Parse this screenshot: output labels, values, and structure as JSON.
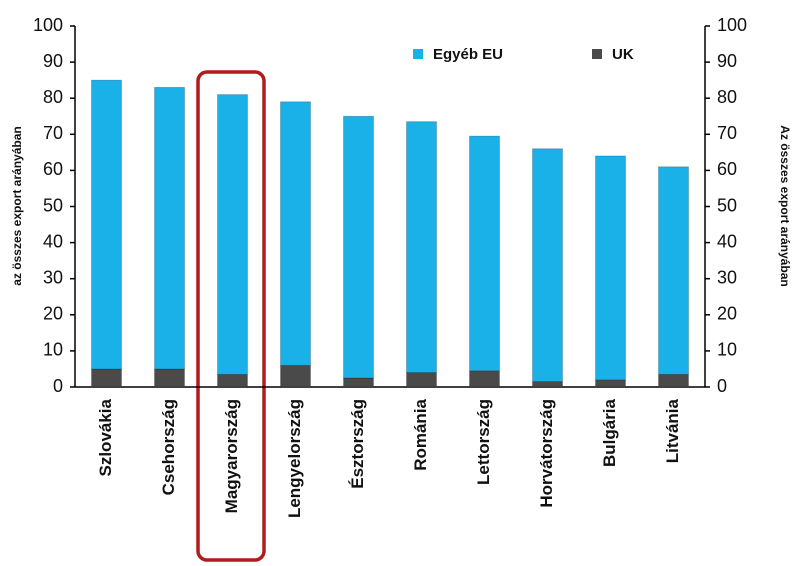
{
  "chart_data": {
    "type": "bar",
    "stacked": true,
    "categories": [
      "Szlovákia",
      "Csehország",
      "Magyarország",
      "Lengyelország",
      "Észtország",
      "Románia",
      "Lettország",
      "Horvátország",
      "Bulgária",
      "Litvánia"
    ],
    "series": [
      {
        "name": "UK",
        "color": "#4a4a4a",
        "values": [
          5,
          5,
          3.5,
          6,
          2.5,
          4,
          4.5,
          1.5,
          2,
          3.5
        ]
      },
      {
        "name": "Egyéb EU",
        "color": "#1ab0e8",
        "values": [
          80,
          78,
          77.5,
          73,
          72.5,
          69.5,
          65,
          64.5,
          62,
          57.5
        ]
      }
    ],
    "ylabel": "az összes export arányában",
    "y2label": "Az összes export arányában",
    "ylim": [
      0,
      100
    ],
    "yticks": [
      0,
      10,
      20,
      30,
      40,
      50,
      60,
      70,
      80,
      90,
      100
    ],
    "y2lim": [
      0,
      100
    ],
    "y2ticks": [
      0,
      10,
      20,
      30,
      40,
      50,
      60,
      70,
      80,
      90,
      100
    ],
    "grid": false,
    "legend": "top"
  }
}
